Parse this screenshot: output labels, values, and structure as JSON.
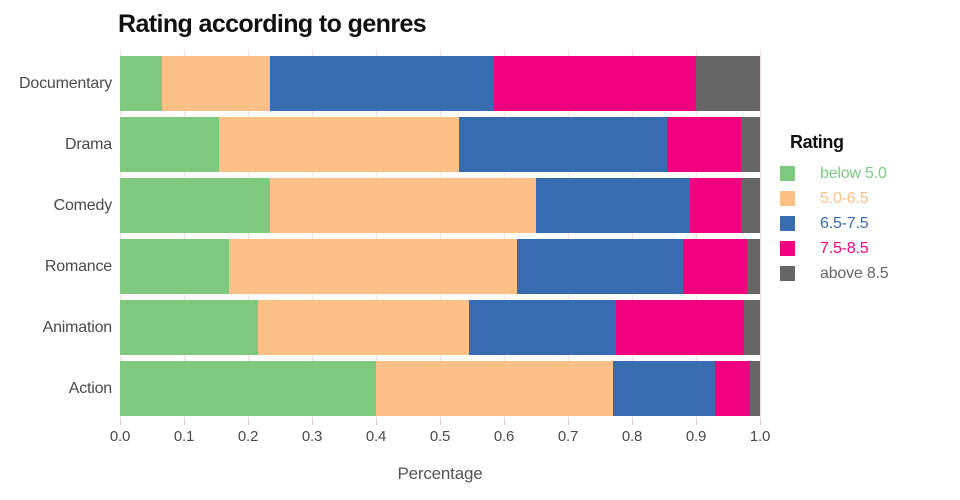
{
  "page": {
    "background": "#ffffff",
    "title_color": "#111111",
    "axis_text_color": "#4a4a4a",
    "gridline_color": "#f5dfdf"
  },
  "chart_data": {
    "type": "bar",
    "orientation": "horizontal",
    "stacked": true,
    "title": "Rating according to genres",
    "xlabel": "Percentage",
    "ylabel": "",
    "xlim": [
      0,
      1.0
    ],
    "xticks": [
      "0.0",
      "0.1",
      "0.2",
      "0.3",
      "0.4",
      "0.5",
      "0.6",
      "0.7",
      "0.8",
      "0.9",
      "1.0"
    ],
    "grid": "vertical",
    "legend": {
      "title": "Rating",
      "position": "right"
    },
    "categories": [
      "Documentary",
      "Drama",
      "Comedy",
      "Romance",
      "Animation",
      "Action"
    ],
    "series": [
      {
        "name": "below 5.0",
        "color": "#7fc97f",
        "values": [
          0.065,
          0.155,
          0.235,
          0.17,
          0.215,
          0.4
        ]
      },
      {
        "name": "5.0-6.5",
        "color": "#fdc086",
        "values": [
          0.17,
          0.375,
          0.415,
          0.45,
          0.33,
          0.37
        ]
      },
      {
        "name": "6.5-7.5",
        "color": "#386cb0",
        "values": [
          0.35,
          0.325,
          0.24,
          0.26,
          0.23,
          0.16
        ]
      },
      {
        "name": "7.5-8.5",
        "color": "#f0027f",
        "values": [
          0.315,
          0.115,
          0.08,
          0.1,
          0.2,
          0.055
        ]
      },
      {
        "name": "above 8.5",
        "color": "#666666",
        "values": [
          0.1,
          0.03,
          0.03,
          0.02,
          0.025,
          0.015
        ]
      }
    ]
  }
}
